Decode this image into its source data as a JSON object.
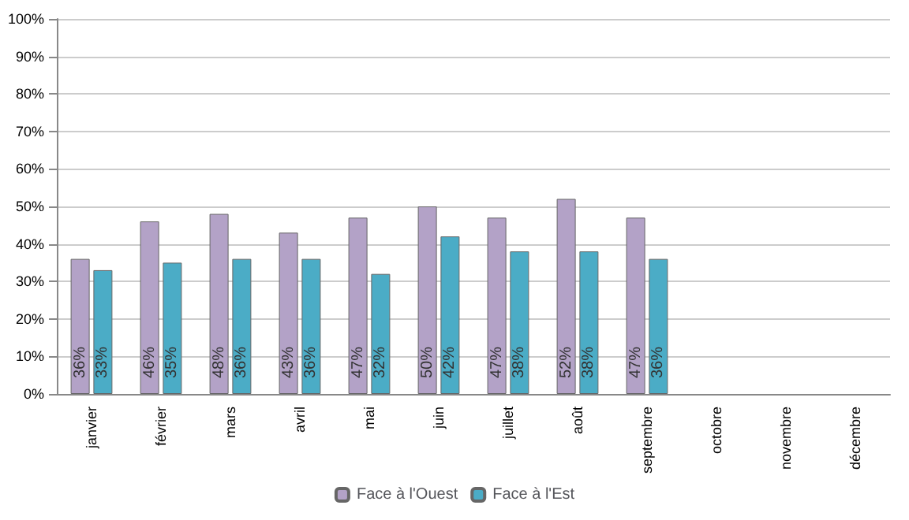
{
  "chart_data": {
    "type": "bar",
    "categories": [
      "janvier",
      "février",
      "mars",
      "avril",
      "mai",
      "juin",
      "juillet",
      "août",
      "septembre",
      "octobre",
      "novembre",
      "décembre"
    ],
    "series": [
      {
        "name": "Face à l'Ouest",
        "color": "#b3a2c7",
        "values": [
          36,
          46,
          48,
          43,
          47,
          50,
          47,
          52,
          47,
          null,
          null,
          null
        ],
        "value_labels": [
          "36%",
          "46%",
          "48%",
          "43%",
          "47%",
          "50%",
          "47%",
          "52%",
          "47%",
          null,
          null,
          null
        ]
      },
      {
        "name": "Face à l'Est",
        "color": "#4bacc6",
        "values": [
          33,
          35,
          36,
          36,
          32,
          42,
          38,
          38,
          36,
          null,
          null,
          null
        ],
        "value_labels": [
          "33%",
          "35%",
          "36%",
          "36%",
          "32%",
          "42%",
          "38%",
          "38%",
          "36%",
          null,
          null,
          null
        ]
      }
    ],
    "ylim": [
      0,
      100
    ],
    "yticks": [
      {
        "value": 0,
        "label": "0%"
      },
      {
        "value": 10,
        "label": "10%"
      },
      {
        "value": 20,
        "label": "20%"
      },
      {
        "value": 30,
        "label": "30%"
      },
      {
        "value": 40,
        "label": "40%"
      },
      {
        "value": 50,
        "label": "50%"
      },
      {
        "value": 60,
        "label": "60%"
      },
      {
        "value": 70,
        "label": "70%"
      },
      {
        "value": 80,
        "label": "80%"
      },
      {
        "value": 90,
        "label": "90%"
      },
      {
        "value": 100,
        "label": "100%"
      }
    ],
    "grid": "y",
    "legend": "bottom"
  }
}
